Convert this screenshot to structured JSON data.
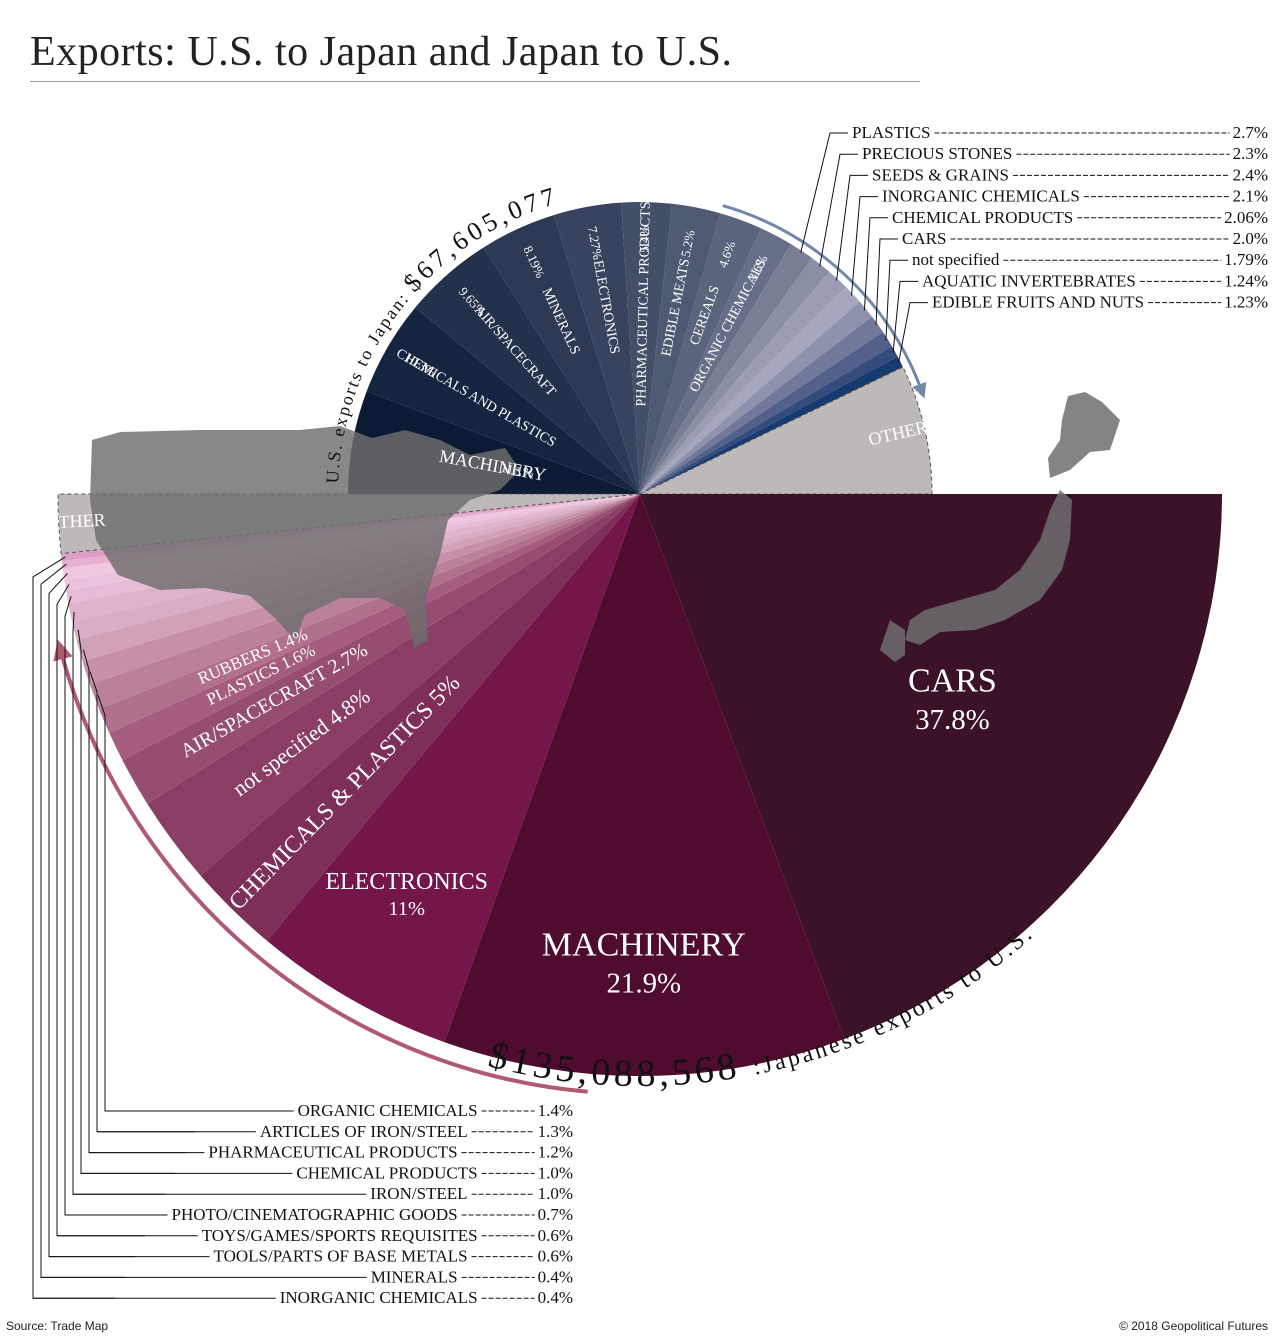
{
  "page": {
    "title": "Exports: U.S. to Japan and Japan to U.S.",
    "source": "Source: Trade Map",
    "copyright": "© 2018 Geopolitical Futures"
  },
  "chart_data": [
    {
      "type": "pie",
      "name": "U.S. exports to Japan",
      "arc_label": "U.S. exports to Japan:",
      "total_label": "$67,605,077",
      "colors": {
        "dark": "#0c1a33",
        "mid": "#3d4a63",
        "light": "#a7a8c0",
        "accent": "#163b6e",
        "other": "#bdb9b9",
        "arrow": "#7188ad"
      },
      "slices": [
        {
          "label": "MACHINERY",
          "pct_label": "11.1%",
          "value": 11.1,
          "color": "#0c1a33"
        },
        {
          "label": "CHEMICALS AND PLASTICS",
          "pct_label": "10.3%",
          "value": 10.3,
          "color": "#152540"
        },
        {
          "label": "AIR/SPACECRAFT",
          "pct_label": "9.65%",
          "value": 9.65,
          "color": "#23314b"
        },
        {
          "label": "MINERALS",
          "pct_label": "8.19%",
          "value": 8.19,
          "color": "#2e3a54"
        },
        {
          "label": "ELECTRONICS",
          "pct_label": "7.27%",
          "value": 7.27,
          "color": "#38445d"
        },
        {
          "label": "PHARMACEUTICAL PRODUCTS",
          "pct_label": "5.4%",
          "value": 5.4,
          "color": "#434e67"
        },
        {
          "label": "EDIBLE MEATS",
          "pct_label": "5.2%",
          "value": 5.2,
          "color": "#4e5972"
        },
        {
          "label": "CEREALS",
          "pct_label": "4.6%",
          "value": 4.6,
          "color": "#5a647c"
        },
        {
          "label": "ORGANIC CHEMICALS",
          "pct_label": "3.6%",
          "value": 3.6,
          "color": "#666f87"
        },
        {
          "label": "PLASTICS",
          "pct_label": "2.7%",
          "value": 2.7,
          "color": "#787f94"
        },
        {
          "label": "PRECIOUS STONES",
          "pct_label": "2.3%",
          "value": 2.3,
          "color": "#8a8fa3"
        },
        {
          "label": "SEEDS & GRAINS",
          "pct_label": "2.4%",
          "value": 2.4,
          "color": "#9a9db3"
        },
        {
          "label": "INORGANIC CHEMICALS",
          "pct_label": "2.1%",
          "value": 2.1,
          "color": "#a5a7bf"
        },
        {
          "label": "CHEMICAL PRODUCTS",
          "pct_label": "2.06%",
          "value": 2.06,
          "color": "#8e92ad"
        },
        {
          "label": "CARS",
          "pct_label": "2.0%",
          "value": 2.0,
          "color": "#71789a"
        },
        {
          "label": "not specified",
          "pct_label": "1.79%",
          "value": 1.79,
          "color": "#53608a"
        },
        {
          "label": "AQUATIC INVERTEBRATES",
          "pct_label": "1.24%",
          "value": 1.24,
          "color": "#344b7c"
        },
        {
          "label": "EDIBLE FRUITS AND NUTS",
          "pct_label": "1.23%",
          "value": 1.23,
          "color": "#163b6e"
        },
        {
          "label": "OTHER",
          "pct_label": "",
          "value": 13.9,
          "color": "#bdb9b9"
        }
      ]
    },
    {
      "type": "pie",
      "name": "Japanese exports to U.S.",
      "arc_label": ":Japanese exports to U.S.",
      "total_label": "$135,088,568",
      "colors": {
        "dark": "#3b1228",
        "mid": "#7a1a4a",
        "light": "#efc8e0",
        "other": "#bdb9b9",
        "arrow": "#b05a72"
      },
      "slices": [
        {
          "label": "CARS",
          "pct_label": "37.8%",
          "value": 37.8,
          "color": "#3b1228"
        },
        {
          "label": "MACHINERY",
          "pct_label": "21.9%",
          "value": 21.9,
          "color": "#4f0c2e"
        },
        {
          "label": "ELECTRONICS",
          "pct_label": "11%",
          "value": 11.0,
          "color": "#75164a"
        },
        {
          "label": "CHEMICALS & PLASTICS",
          "pct_label": "5%",
          "value": 5.0,
          "color": "#7e2f57"
        },
        {
          "label": "not specified",
          "pct_label": "4.8%",
          "value": 4.8,
          "color": "#8a3e63"
        },
        {
          "label": "AIR/SPACECRAFT",
          "pct_label": "2.7%",
          "value": 2.7,
          "color": "#964e70"
        },
        {
          "label": "PLASTICS",
          "pct_label": "1.6%",
          "value": 1.6,
          "color": "#a55d7d"
        },
        {
          "label": "RUBBERS",
          "pct_label": "1.4%",
          "value": 1.4,
          "color": "#b1708c"
        },
        {
          "label": "ORGANIC CHEMICALS",
          "pct_label": "1.4%",
          "value": 1.4,
          "color": "#bb8199"
        },
        {
          "label": "ARTICLES OF IRON/STEEL",
          "pct_label": "1.3%",
          "value": 1.3,
          "color": "#c691a8"
        },
        {
          "label": "PHARMACEUTICAL PRODUCTS",
          "pct_label": "1.2%",
          "value": 1.2,
          "color": "#d1a1b7"
        },
        {
          "label": "CHEMICAL PRODUCTS",
          "pct_label": "1.0%",
          "value": 1.0,
          "color": "#d9adc3"
        },
        {
          "label": "IRON/STEEL",
          "pct_label": "1.0%",
          "value": 1.0,
          "color": "#e0b3cb"
        },
        {
          "label": "PHOTO/CINEMATOGRAPHIC GOODS",
          "pct_label": "0.7%",
          "value": 0.7,
          "color": "#e8bcd6"
        },
        {
          "label": "TOYS/GAMES/SPORTS REQUISITES",
          "pct_label": "0.6%",
          "value": 0.6,
          "color": "#ecc3dc"
        },
        {
          "label": "TOOLS/PARTS OF BASE METALS",
          "pct_label": "0.6%",
          "value": 0.6,
          "color": "#efc8e0"
        },
        {
          "label": "MINERALS",
          "pct_label": "0.4%",
          "value": 0.4,
          "color": "#e7b0d0"
        },
        {
          "label": "INORGANIC CHEMICALS",
          "pct_label": "0.4%",
          "value": 0.4,
          "color": "#dd9ec6"
        },
        {
          "label": "OTHER",
          "pct_label": "",
          "value": 3.2,
          "color": "#bdb9b9"
        }
      ]
    }
  ],
  "leaders": {
    "us": [
      {
        "label": "PLASTICS",
        "pct": "2.7%"
      },
      {
        "label": "PRECIOUS STONES",
        "pct": "2.3%"
      },
      {
        "label": "SEEDS & GRAINS",
        "pct": "2.4%"
      },
      {
        "label": "INORGANIC CHEMICALS",
        "pct": "2.1%"
      },
      {
        "label": "CHEMICAL PRODUCTS",
        "pct": "2.06%"
      },
      {
        "label": "CARS",
        "pct": "2.0%"
      },
      {
        "label": "not specified",
        "pct": "1.79%"
      },
      {
        "label": "AQUATIC INVERTEBRATES",
        "pct": "1.24%"
      },
      {
        "label": "EDIBLE FRUITS AND NUTS",
        "pct": "1.23%"
      }
    ],
    "japan": [
      {
        "label": "ORGANIC CHEMICALS",
        "pct": "1.4%"
      },
      {
        "label": "ARTICLES OF IRON/STEEL",
        "pct": "1.3%"
      },
      {
        "label": "PHARMACEUTICAL PRODUCTS",
        "pct": "1.2%"
      },
      {
        "label": "CHEMICAL PRODUCTS",
        "pct": "1.0%"
      },
      {
        "label": "IRON/STEEL",
        "pct": "1.0%"
      },
      {
        "label": "PHOTO/CINEMATOGRAPHIC GOODS",
        "pct": "0.7%"
      },
      {
        "label": "TOYS/GAMES/SPORTS REQUISITES",
        "pct": "0.6%"
      },
      {
        "label": "TOOLS/PARTS OF BASE METALS",
        "pct": "0.6%"
      },
      {
        "label": "MINERALS",
        "pct": "0.4%"
      },
      {
        "label": "INORGANIC CHEMICALS",
        "pct": "0.4%"
      }
    ]
  }
}
